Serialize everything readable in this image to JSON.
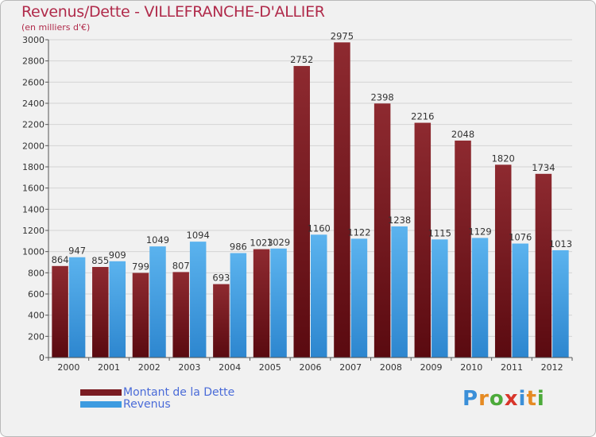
{
  "chart_data": {
    "type": "bar",
    "title": "Revenus/Dette - VILLEFRANCHE-D'ALLIER",
    "subtitle": "(en milliers d'€)",
    "categories": [
      "2000",
      "2001",
      "2002",
      "2003",
      "2004",
      "2005",
      "2006",
      "2007",
      "2008",
      "2009",
      "2010",
      "2011",
      "2012"
    ],
    "series": [
      {
        "name": "Montant de la Dette",
        "color": "#7a1c22",
        "values": [
          864,
          855,
          799,
          807,
          693,
          1023,
          2752,
          2975,
          2398,
          2216,
          2048,
          1820,
          1734
        ]
      },
      {
        "name": "Revenus",
        "color": "#3d9be0",
        "values": [
          947,
          909,
          1049,
          1094,
          986,
          1029,
          1160,
          1122,
          1238,
          1115,
          1129,
          1076,
          1013
        ]
      }
    ],
    "ylim": [
      0,
      3000
    ],
    "yticks": [
      0,
      200,
      400,
      600,
      800,
      1000,
      1200,
      1400,
      1600,
      1800,
      2000,
      2200,
      2400,
      2600,
      2800,
      3000
    ],
    "grid": true,
    "legend": "bottom-left"
  },
  "logo": {
    "letters": [
      "P",
      "r",
      "o",
      "x",
      "i",
      "t",
      "i"
    ],
    "colors": [
      "#3b8fd8",
      "#e58a23",
      "#4caa3a",
      "#d8352a",
      "#3b8fd8",
      "#e58a23",
      "#4caa3a"
    ]
  }
}
